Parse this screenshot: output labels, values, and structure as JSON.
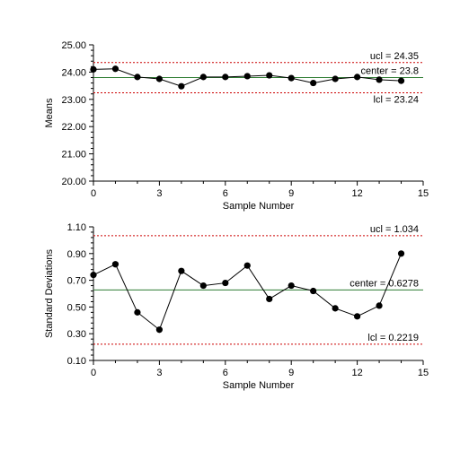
{
  "chart_data": [
    {
      "type": "line",
      "xlabel": "Sample Number",
      "ylabel": "Means",
      "xlim": [
        0,
        15
      ],
      "ylim": [
        20,
        25
      ],
      "xticks": [
        0,
        3,
        6,
        9,
        12,
        15
      ],
      "yticks": [
        "20.00",
        "21.00",
        "22.00",
        "23.00",
        "24.00",
        "25.00"
      ],
      "grid": false,
      "x": [
        0,
        1,
        2,
        3,
        4,
        5,
        6,
        7,
        8,
        9,
        10,
        11,
        12,
        13,
        14
      ],
      "values": [
        24.1,
        24.12,
        23.82,
        23.75,
        23.48,
        23.82,
        23.82,
        23.85,
        23.88,
        23.78,
        23.6,
        23.75,
        23.82,
        23.72,
        23.68
      ],
      "series_color": "#000000",
      "ucl": {
        "value": 24.35,
        "label": "ucl = 24.35",
        "color": "#cc0000"
      },
      "center": {
        "value": 23.8,
        "label": "center = 23.8",
        "color": "#2e7d32"
      },
      "lcl": {
        "value": 23.24,
        "label": "lcl = 23.24",
        "color": "#cc0000"
      }
    },
    {
      "type": "line",
      "xlabel": "Sample Number",
      "ylabel": "Standard Deviations",
      "xlim": [
        0,
        15
      ],
      "ylim": [
        0.1,
        1.1
      ],
      "xticks": [
        0,
        3,
        6,
        9,
        12,
        15
      ],
      "yticks": [
        "0.10",
        "0.30",
        "0.50",
        "0.70",
        "0.90",
        "1.10"
      ],
      "grid": false,
      "x": [
        0,
        1,
        2,
        3,
        4,
        5,
        6,
        7,
        8,
        9,
        10,
        11,
        12,
        13,
        14
      ],
      "values": [
        0.74,
        0.82,
        0.46,
        0.33,
        0.77,
        0.66,
        0.68,
        0.81,
        0.56,
        0.66,
        0.62,
        0.49,
        0.43,
        0.51,
        0.9
      ],
      "series_color": "#000000",
      "ucl": {
        "value": 1.034,
        "label": "ucl = 1.034",
        "color": "#cc0000"
      },
      "center": {
        "value": 0.6278,
        "label": "center = 0.6278",
        "color": "#2e7d32"
      },
      "lcl": {
        "value": 0.2219,
        "label": "lcl = 0.2219",
        "color": "#cc0000"
      }
    }
  ]
}
